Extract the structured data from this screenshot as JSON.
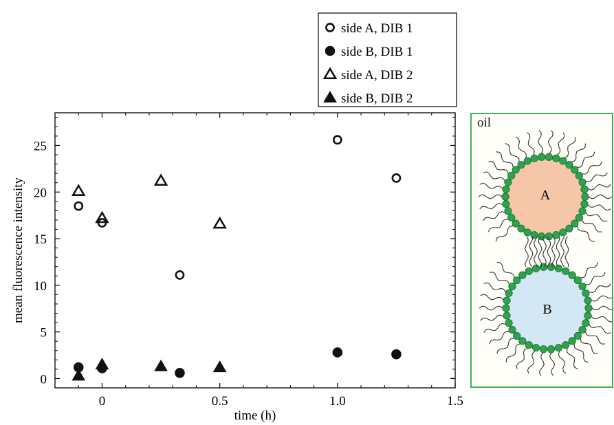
{
  "chart_data": {
    "type": "scatter",
    "xlabel": "time (h)",
    "ylabel": "mean fluorescence intensity",
    "xlim": [
      -0.2,
      1.5
    ],
    "ylim": [
      -1,
      28.5
    ],
    "x_ticks": [
      0,
      0.5,
      1.0,
      1.5
    ],
    "x_tick_labels": [
      "0",
      "0.5",
      "1.0",
      "1.5"
    ],
    "y_ticks": [
      0,
      5,
      10,
      15,
      20,
      25
    ],
    "y_tick_labels": [
      "0",
      "5",
      "10",
      "15",
      "20",
      "25"
    ],
    "grid": false,
    "legend_position": "top, outside above plot",
    "series": [
      {
        "name": "side A, DIB 1",
        "marker": "circle-open",
        "x": [
          -0.1,
          0,
          0.33,
          1.0,
          1.25
        ],
        "y": [
          18.5,
          16.7,
          11.1,
          25.6,
          21.5
        ]
      },
      {
        "name": "side B, DIB 1",
        "marker": "circle-filled",
        "x": [
          -0.1,
          0,
          0.33,
          1.0,
          1.25
        ],
        "y": [
          1.2,
          1.1,
          0.6,
          2.8,
          2.6
        ]
      },
      {
        "name": "side A, DIB 2",
        "marker": "triangle-open",
        "x": [
          -0.1,
          0,
          0.25,
          0.5
        ],
        "y": [
          20.1,
          17.2,
          21.2,
          16.6
        ]
      },
      {
        "name": "side B, DIB 2",
        "marker": "triangle-filled",
        "x": [
          -0.1,
          0,
          0.25,
          0.5
        ],
        "y": [
          0.3,
          1.5,
          1.3,
          1.2
        ]
      }
    ]
  },
  "schematic": {
    "oil_label": "oil",
    "droplet_a_label": "A",
    "droplet_b_label": "B",
    "colors": {
      "droplet_a": "#f5c6a8",
      "droplet_b": "#d3e7f4",
      "lipid_head": "#2fa24e",
      "border": "#3fae5a"
    }
  }
}
